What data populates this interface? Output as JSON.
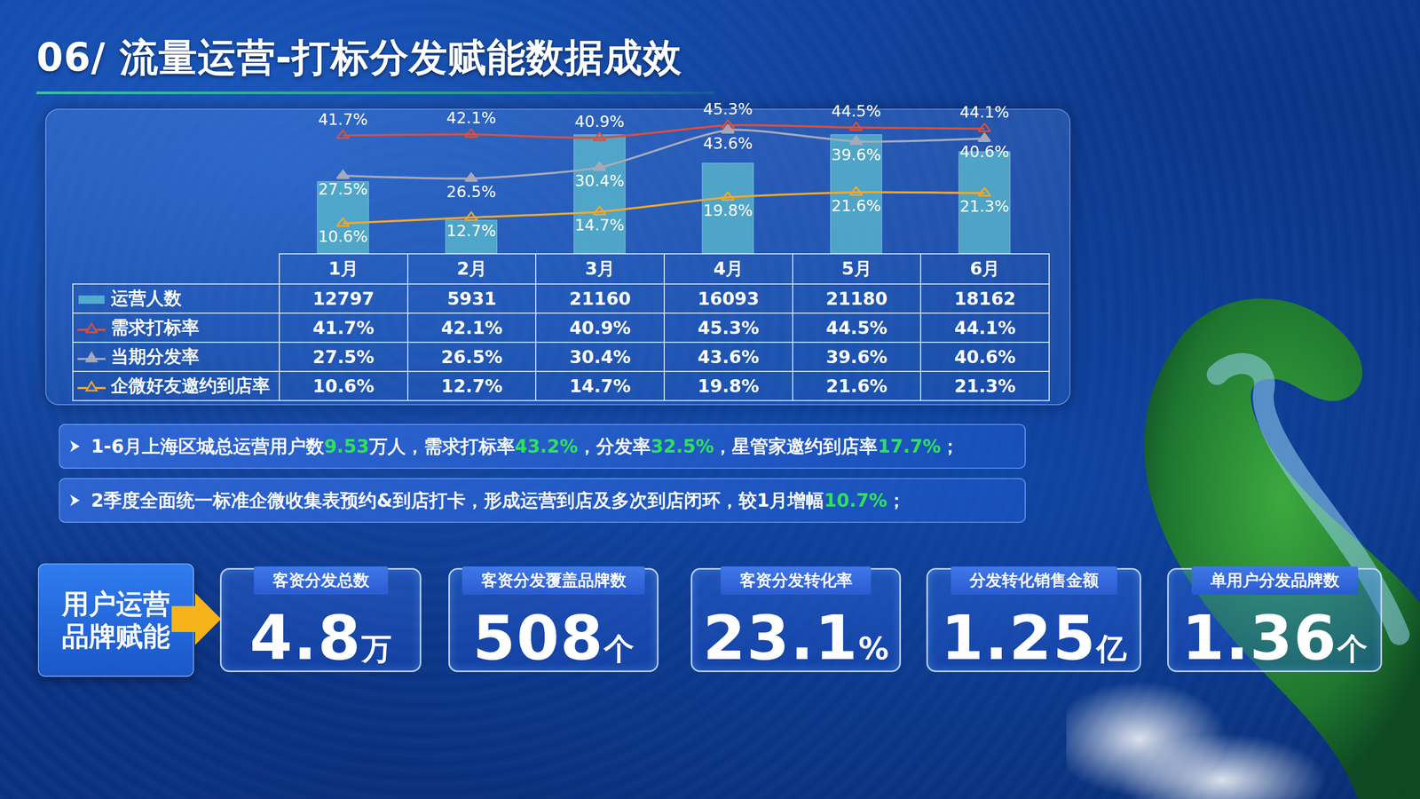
{
  "title": "06/ 流量运营-打标分发赋能数据成效",
  "chart_data": {
    "type": "bar",
    "categories": [
      "1月",
      "2月",
      "3月",
      "4月",
      "5月",
      "6月"
    ],
    "ylim": [
      0,
      25700
    ],
    "yticks": [],
    "y2lim": [
      0,
      51
    ],
    "y2ticks": [],
    "grid": false,
    "tick_labels": false,
    "series": [
      {
        "name": "运营人数",
        "type": "bar",
        "color": "#58b6cc",
        "data_labels": false,
        "values": [
          12797,
          5931,
          21160,
          16093,
          21180,
          18162
        ]
      },
      {
        "name": "需求打标率",
        "type": "line",
        "axis": "y2",
        "color": "#d9503c",
        "marker": "triangle-up-open",
        "line_style": "solid",
        "data_labels": true,
        "values": [
          41.7,
          42.1,
          40.9,
          45.3,
          44.5,
          44.1
        ],
        "value_labels": [
          "41.7%",
          "42.1%",
          "40.9%",
          "45.3%",
          "44.5%",
          "44.1%"
        ]
      },
      {
        "name": "当期分发率",
        "type": "line",
        "axis": "y2",
        "color": "#a8a9b8",
        "marker": "triangle-up",
        "line_style": "solid",
        "data_labels": true,
        "values": [
          27.5,
          26.5,
          30.4,
          43.6,
          39.6,
          40.6
        ],
        "value_labels": [
          "27.5%",
          "26.5%",
          "30.4%",
          "43.6%",
          "39.6%",
          "40.6%"
        ]
      },
      {
        "name": "企微好友邀约到店率",
        "type": "line",
        "axis": "y2",
        "color": "#f2a82a",
        "marker": "triangle-up-open",
        "line_style": "solid",
        "data_labels": true,
        "values": [
          10.6,
          12.7,
          14.7,
          19.8,
          21.6,
          21.3
        ],
        "value_labels": [
          "10.6%",
          "12.7%",
          "14.7%",
          "19.8%",
          "21.6%",
          "21.3%"
        ]
      }
    ]
  },
  "notes": [
    [
      {
        "text": "1-6月上海区城总运营用户数"
      },
      {
        "text": "9.53",
        "highlight": true
      },
      {
        "text": "万人，需求打标率"
      },
      {
        "text": "43.2%",
        "highlight": true
      },
      {
        "text": "，分发率"
      },
      {
        "text": "32.5%",
        "highlight": true
      },
      {
        "text": "，星管家邀约到店率"
      },
      {
        "text": "17.7%",
        "highlight": true
      },
      {
        "text": "；"
      }
    ],
    [
      {
        "text": "2季度全面统一标准企微收集表预约&到店打卡，形成运营到店及多次到店闭环，较1月增幅"
      },
      {
        "text": "10.7%",
        "highlight": true
      },
      {
        "text": "；"
      }
    ]
  ],
  "kpi": {
    "label": [
      "用户运营",
      "品牌赋能"
    ],
    "cards": [
      {
        "title": "客资分发总数",
        "value": 4.8,
        "unit": "万"
      },
      {
        "title": "客资分发覆盖品牌数",
        "value": 508,
        "unit": "个"
      },
      {
        "title": "客资分发转化率",
        "value": 23.1,
        "unit": "%"
      },
      {
        "title": "分发转化销售金额",
        "value": 1.25,
        "unit": "亿"
      },
      {
        "title": "单用户分发品牌数",
        "value": 1.36,
        "unit": "个"
      }
    ]
  }
}
